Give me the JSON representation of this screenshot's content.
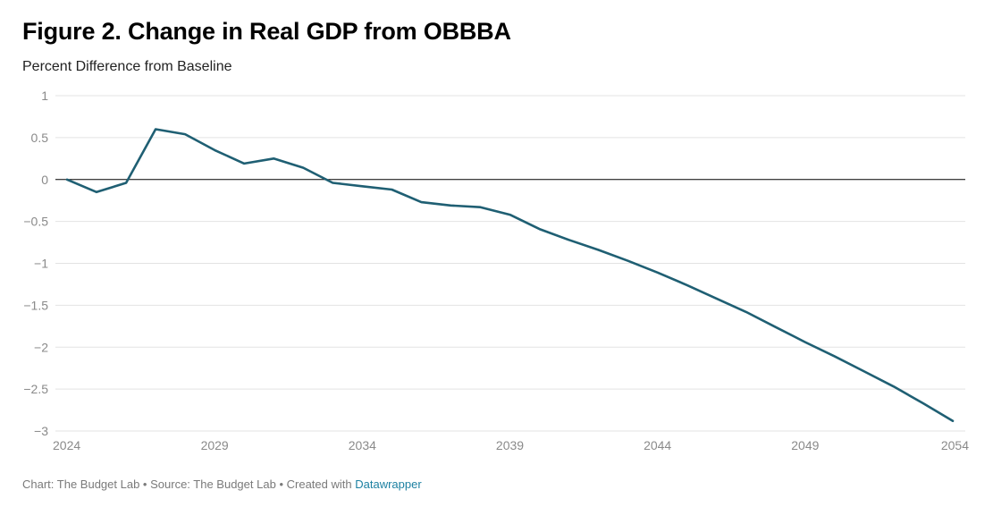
{
  "title": "Figure 2. Change in Real GDP from OBBBA",
  "subtitle": "Percent Difference from Baseline",
  "footer": {
    "chart_credit": "Chart: The Budget Lab",
    "separator": "•",
    "source": "Source: The Budget Lab",
    "created_with": "Created with",
    "tool": "Datawrapper"
  },
  "colors": {
    "line": "#1f5f73",
    "grid": "#e3e3e3",
    "zero_line": "#000000",
    "tick_text": "#8a8a8a",
    "link": "#1d81a2"
  },
  "chart_data": {
    "type": "line",
    "title": "Figure 2. Change in Real GDP from OBBBA",
    "subtitle": "Percent Difference from Baseline",
    "xlabel": "",
    "ylabel": "",
    "xlim": [
      2024,
      2054
    ],
    "ylim": [
      -3,
      1
    ],
    "x_ticks": [
      2024,
      2029,
      2034,
      2039,
      2044,
      2049,
      2054
    ],
    "y_ticks": [
      1,
      0.5,
      0,
      -0.5,
      -1,
      -1.5,
      -2,
      -2.5,
      -3
    ],
    "y_tick_labels": [
      "1",
      "0.5",
      "0",
      "−0.5",
      "−1",
      "−1.5",
      "−2",
      "−2.5",
      "−3"
    ],
    "grid": true,
    "series": [
      {
        "x": [
          2024,
          2025,
          2026,
          2027,
          2028,
          2029,
          2030,
          2031,
          2032,
          2033,
          2034,
          2035,
          2036,
          2037,
          2038,
          2039,
          2040,
          2041,
          2042,
          2043,
          2044,
          2045,
          2046,
          2047,
          2048,
          2049,
          2050,
          2051,
          2052,
          2053,
          2054
        ],
        "values": [
          0,
          -0.15,
          -0.04,
          0.6,
          0.54,
          0.35,
          0.19,
          0.25,
          0.14,
          -0.04,
          -0.08,
          -0.12,
          -0.27,
          -0.31,
          -0.33,
          -0.42,
          -0.59,
          -0.72,
          -0.84,
          -0.97,
          -1.11,
          -1.26,
          -1.42,
          -1.58,
          -1.76,
          -1.94,
          -2.11,
          -2.29,
          -2.47,
          -2.67,
          -2.88
        ]
      }
    ]
  }
}
